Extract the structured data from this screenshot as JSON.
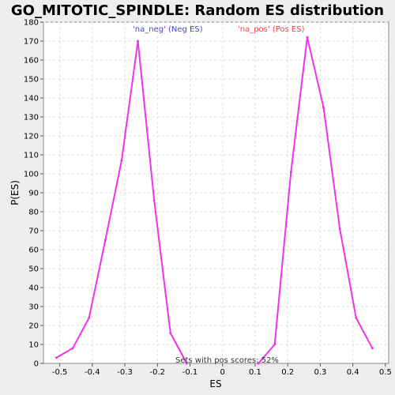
{
  "chart_data": {
    "type": "line",
    "title": "GO_MITOTIC_SPINDLE: Random ES distribution",
    "xlabel": "ES",
    "ylabel": "P(ES)",
    "xlim": [
      -0.55,
      0.51
    ],
    "ylim": [
      0,
      180
    ],
    "x_ticks": [
      -0.5,
      -0.4,
      -0.3,
      -0.2,
      -0.1,
      0,
      0.1,
      0.2,
      0.3,
      0.4,
      0.5
    ],
    "x_tick_labels": [
      "-0.5",
      "-0.4",
      "-0.3",
      "-0.2",
      "-0.1",
      "0",
      "0.1",
      "0.2",
      "0.3",
      "0.4",
      "0.5"
    ],
    "y_ticks": [
      0,
      10,
      20,
      30,
      40,
      50,
      60,
      70,
      80,
      90,
      100,
      110,
      120,
      130,
      140,
      150,
      160,
      170,
      180
    ],
    "y_tick_labels": [
      "0",
      "10",
      "20",
      "30",
      "40",
      "50",
      "60",
      "70",
      "80",
      "90",
      "100",
      "110",
      "120",
      "130",
      "140",
      "150",
      "160",
      "170",
      "180"
    ],
    "grid": true,
    "series": [
      {
        "name": "na_neg",
        "color": "#ee33ee",
        "x": [
          -0.51,
          -0.46,
          -0.41,
          -0.36,
          -0.31,
          -0.26,
          -0.21,
          -0.16,
          -0.11
        ],
        "values": [
          3,
          8,
          24,
          65,
          107,
          170,
          86,
          16,
          0
        ]
      },
      {
        "name": "na_pos",
        "color": "#ee33ee",
        "x": [
          0.11,
          0.16,
          0.21,
          0.26,
          0.31,
          0.36,
          0.41,
          0.46
        ],
        "values": [
          0,
          10,
          101,
          172,
          135,
          71,
          24,
          8
        ]
      }
    ],
    "legend": [
      {
        "label": "'na_neg' (Neg ES)",
        "color": "#4444dd"
      },
      {
        "label": "'na_pos' (Pos ES)",
        "color": "#ee4444"
      }
    ],
    "annotation": "Sets with pos scores: 52%"
  }
}
